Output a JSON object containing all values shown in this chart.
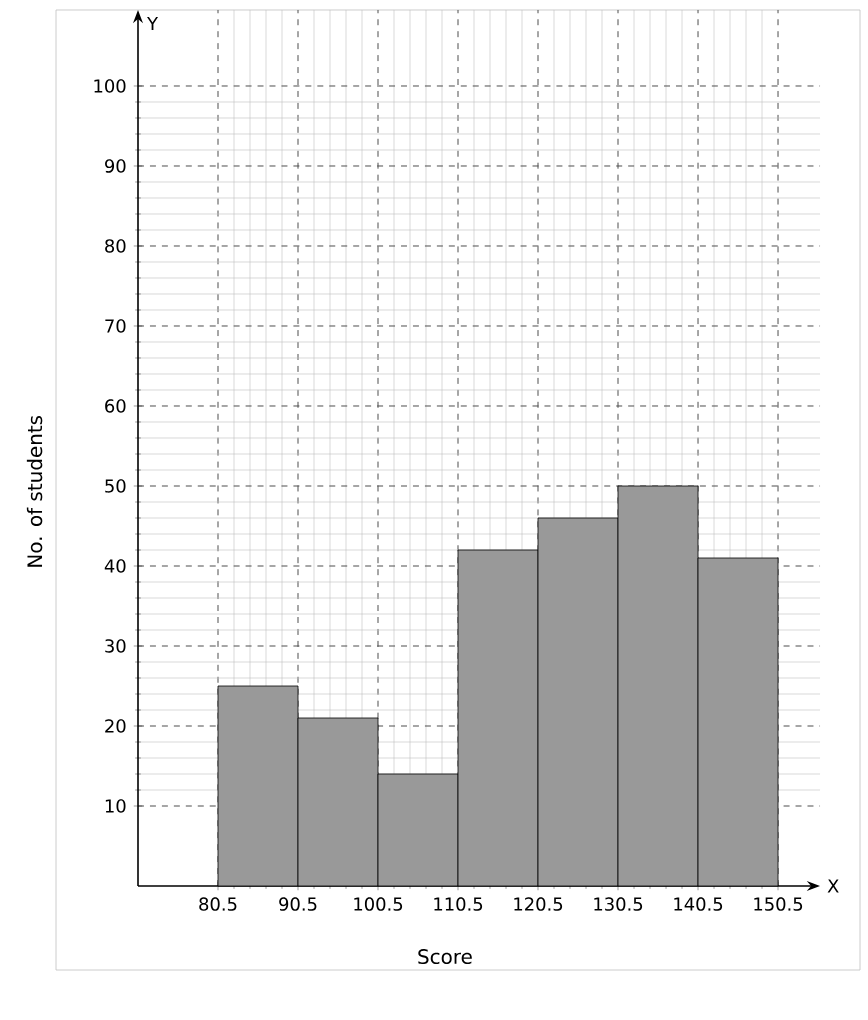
{
  "chart_data": {
    "type": "histogram",
    "xlabel": "Score",
    "ylabel": "No. of students",
    "bins": [
      80.5,
      90.5,
      100.5,
      110.5,
      120.5,
      130.5,
      140.5,
      150.5
    ],
    "values": [
      25,
      21,
      14,
      42,
      46,
      50,
      41
    ],
    "color": "#999999",
    "xlim": [
      70.5,
      155.75
    ],
    "ylim": [
      0,
      109.5
    ],
    "xticks": [
      80.5,
      90.5,
      100.5,
      110.5,
      120.5,
      130.5,
      140.5,
      150.5
    ],
    "yticks": [
      10,
      20,
      30,
      40,
      50,
      60,
      70,
      80,
      90,
      100
    ],
    "grid": true,
    "annotations": [
      "X",
      "Y"
    ]
  }
}
